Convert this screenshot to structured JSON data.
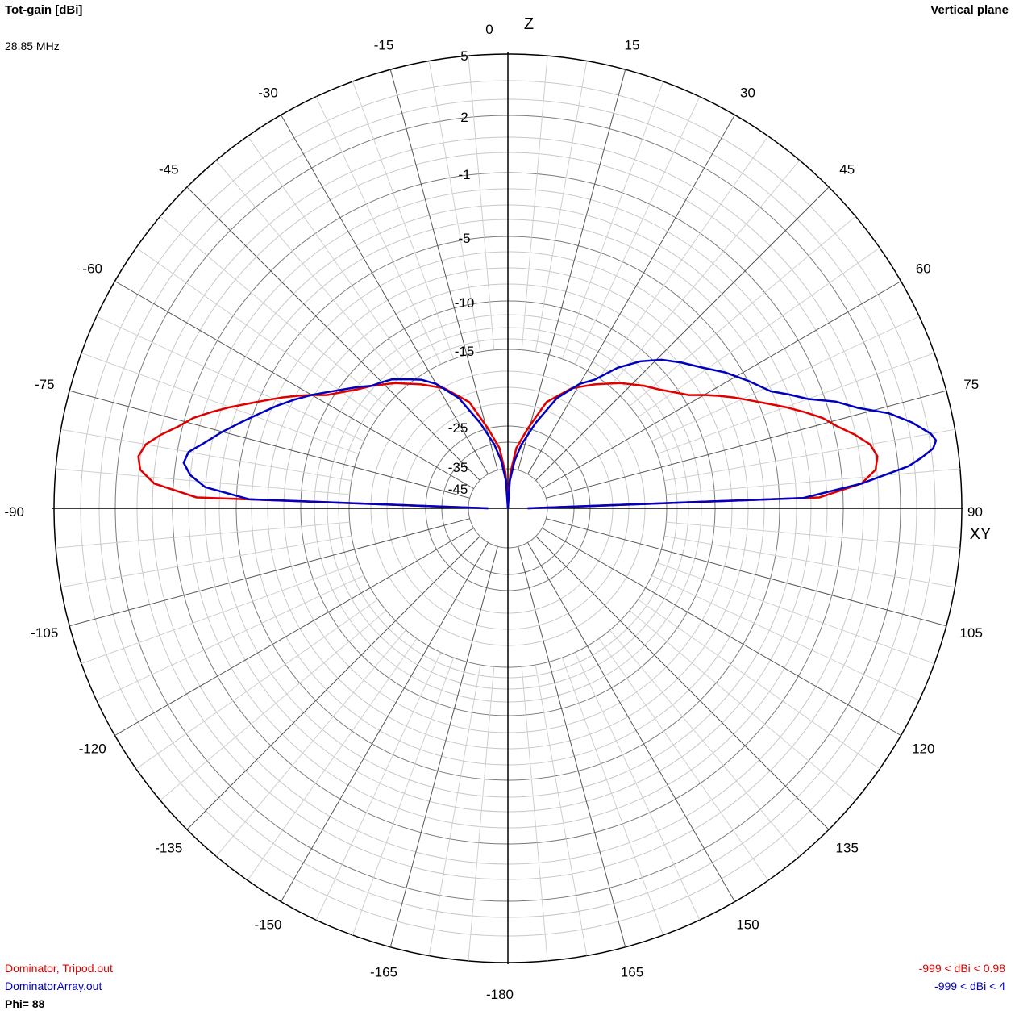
{
  "header": {
    "title": "Tot-gain [dBi]",
    "plane": "Vertical plane",
    "frequency": "28.85 MHz"
  },
  "footer": {
    "phi": "Phi= 88",
    "legend": [
      {
        "name": "Dominator, Tripod.out",
        "color": "#e00000",
        "range": "-999 < dBi < 0.98"
      },
      {
        "name": "DominatorArray.out",
        "color": "#0000c0",
        "range": "-999 < dBi < 4"
      }
    ]
  },
  "chart_data": {
    "type": "polar",
    "angle_unit": "degrees",
    "angle_labels": [
      "0",
      "15",
      "30",
      "45",
      "60",
      "75",
      "90",
      "105",
      "120",
      "135",
      "150",
      "165",
      "-180",
      "-165",
      "-150",
      "-135",
      "-120",
      "-105",
      "-90",
      "-75",
      "-60",
      "-45",
      "-30",
      "-15"
    ],
    "ring_labels": [
      "5",
      "2",
      "-1",
      "-5",
      "-10",
      "-15",
      "-25",
      "-35",
      "-45"
    ],
    "axis_labels": {
      "top": "Z",
      "right": "XY"
    },
    "series": [
      {
        "name": "Dominator, Tripod.out",
        "color": "#e00000",
        "points": [
          [
            -90,
            -40
          ],
          [
            -88,
            -2.5
          ],
          [
            -86,
            0
          ],
          [
            -84,
            0.8
          ],
          [
            -82,
            0.98
          ],
          [
            -80,
            0.7
          ],
          [
            -78,
            0
          ],
          [
            -76,
            -0.8
          ],
          [
            -74,
            -1.5
          ],
          [
            -72,
            -2.5
          ],
          [
            -70,
            -3.5
          ],
          [
            -68,
            -4.5
          ],
          [
            -66,
            -5.5
          ],
          [
            -64,
            -6.5
          ],
          [
            -62,
            -7.5
          ],
          [
            -60,
            -8.5
          ],
          [
            -58,
            -9.5
          ],
          [
            -55,
            -10.5
          ],
          [
            -52,
            -11.5
          ],
          [
            -48,
            -12.5
          ],
          [
            -42,
            -14
          ],
          [
            -35,
            -16
          ],
          [
            -28,
            -18
          ],
          [
            -20,
            -21
          ],
          [
            -14,
            -25
          ],
          [
            -8,
            -30
          ],
          [
            -4,
            -36
          ],
          [
            -2,
            -41
          ],
          [
            0,
            -45
          ],
          [
            2,
            -41
          ],
          [
            4,
            -36
          ],
          [
            8,
            -30
          ],
          [
            14,
            -25
          ],
          [
            20,
            -21
          ],
          [
            28,
            -18
          ],
          [
            35,
            -16
          ],
          [
            42,
            -14
          ],
          [
            48,
            -12.5
          ],
          [
            52,
            -11.5
          ],
          [
            55,
            -10.5
          ],
          [
            58,
            -9.5
          ],
          [
            60,
            -8.5
          ],
          [
            62,
            -7.5
          ],
          [
            64,
            -6.5
          ],
          [
            66,
            -5.5
          ],
          [
            68,
            -4.5
          ],
          [
            70,
            -3.5
          ],
          [
            72,
            -2.5
          ],
          [
            74,
            -1.5
          ],
          [
            76,
            -0.8
          ],
          [
            78,
            0
          ],
          [
            80,
            0.7
          ],
          [
            82,
            0.98
          ],
          [
            84,
            0.8
          ],
          [
            86,
            0
          ],
          [
            88,
            -2.5
          ],
          [
            90,
            -40
          ]
        ]
      },
      {
        "name": "DominatorArray.out",
        "color": "#0000c0",
        "points": [
          [
            -90,
            -40
          ],
          [
            -88,
            -6
          ],
          [
            -86,
            -3
          ],
          [
            -84,
            -2
          ],
          [
            -82,
            -1.5
          ],
          [
            -80,
            -1.7
          ],
          [
            -78,
            -2.5
          ],
          [
            -75,
            -3.5
          ],
          [
            -72,
            -4.5
          ],
          [
            -69,
            -5.5
          ],
          [
            -66,
            -6.5
          ],
          [
            -63,
            -7.5
          ],
          [
            -60,
            -8.5
          ],
          [
            -57,
            -9.5
          ],
          [
            -54,
            -10.5
          ],
          [
            -51,
            -11.5
          ],
          [
            -48,
            -12.5
          ],
          [
            -45,
            -13
          ],
          [
            -42,
            -13.5
          ],
          [
            -38,
            -14.5
          ],
          [
            -34,
            -15.5
          ],
          [
            -30,
            -17
          ],
          [
            -24,
            -20
          ],
          [
            -18,
            -24
          ],
          [
            -12,
            -29
          ],
          [
            -8,
            -33
          ],
          [
            -4,
            -38
          ],
          [
            0,
            -45
          ],
          [
            4,
            -38
          ],
          [
            8,
            -33
          ],
          [
            12,
            -29
          ],
          [
            18,
            -24
          ],
          [
            24,
            -20
          ],
          [
            30,
            -17
          ],
          [
            34,
            -15.5
          ],
          [
            38,
            -13
          ],
          [
            42,
            -11
          ],
          [
            46,
            -9.5
          ],
          [
            50,
            -8.5
          ],
          [
            54,
            -7.5
          ],
          [
            58,
            -6.2
          ],
          [
            62,
            -5
          ],
          [
            66,
            -4
          ],
          [
            68,
            -3
          ],
          [
            70,
            -2
          ],
          [
            72,
            -0.5
          ],
          [
            74,
            0.5
          ],
          [
            76,
            2
          ],
          [
            78,
            3
          ],
          [
            80,
            3.8
          ],
          [
            81,
            4
          ],
          [
            82,
            3.8
          ],
          [
            83,
            3.2
          ],
          [
            84,
            2.5
          ],
          [
            86,
            0
          ],
          [
            88,
            -3.5
          ],
          [
            90,
            -40
          ]
        ]
      }
    ],
    "grid": true
  }
}
